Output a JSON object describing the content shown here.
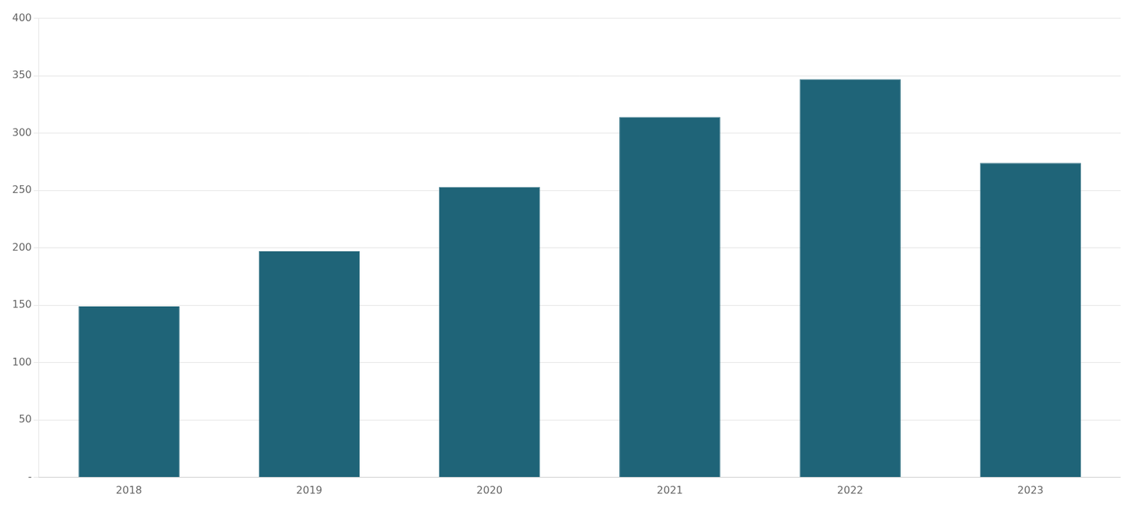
{
  "chart_data": {
    "type": "bar",
    "categories": [
      "2018",
      "2019",
      "2020",
      "2021",
      "2022",
      "2023"
    ],
    "values": [
      149,
      197,
      253,
      314,
      347,
      274
    ],
    "color": "#1F6478",
    "ylim": [
      0,
      400
    ],
    "yticks": [
      {
        "value": 0,
        "label": "-"
      },
      50,
      100,
      150,
      200,
      250,
      300,
      350,
      400
    ],
    "grid": true
  }
}
